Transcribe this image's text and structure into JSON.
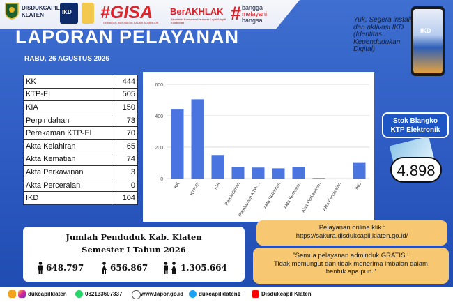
{
  "header": {
    "org_line1": "DISDUKCAPIL",
    "org_line2": "KLATEN",
    "ikd_badge": "IKD",
    "gisa": "#GISA",
    "gisa_sub": "GERAKAN INDONESIA SADAR ADMINDUK",
    "berakhlak": "BerAKHLAK",
    "berakhlak_sub": "Akuntabel Kompeten Harmonis Loyal Adaptif Kolaboratif",
    "bangga_hash": "#",
    "bangga_1": "bangga",
    "bangga_2": "melayani",
    "bangga_3": "bangsa"
  },
  "title": "LAPORAN PELAYANAN",
  "date": "RABU, 26 AGUSTUS 2026",
  "promo": "Yuk, Segera install dan aktivasi IKD (Identitas Kependudukan Digital)",
  "phone_label": "IKD",
  "services": [
    {
      "name": "KK",
      "value": "444"
    },
    {
      "name": "KTP-El",
      "value": "505"
    },
    {
      "name": "KIA",
      "value": "150"
    },
    {
      "name": "Perpindahan",
      "value": "73"
    },
    {
      "name": "Perekaman KTP-El",
      "value": "70"
    },
    {
      "name": "Akta Kelahiran",
      "value": "65"
    },
    {
      "name": "Akta Kematian",
      "value": "74"
    },
    {
      "name": "Akta Perkawinan",
      "value": "3"
    },
    {
      "name": "Akta Perceraian",
      "value": "0"
    },
    {
      "name": "IKD",
      "value": "104"
    }
  ],
  "chart_data": {
    "type": "bar",
    "categories": [
      "KK",
      "KTP-El",
      "KIA",
      "Perpindahan",
      "Perekaman KTP-...",
      "Akta Kelahiran",
      "Akta Kematian",
      "Akta Perkawinan",
      "Akta Perceraian",
      "IKD"
    ],
    "values": [
      444,
      505,
      150,
      73,
      70,
      65,
      74,
      3,
      0,
      104
    ],
    "yticks": [
      "0",
      "200",
      "400",
      "600"
    ],
    "ylim": [
      0,
      600
    ],
    "grid": true,
    "color": "#4a74e0"
  },
  "summary": {
    "title_line1": "Jumlah Penduduk Kab. Klaten",
    "title_line2": "Semester I Tahun 2026",
    "male": "648.797",
    "female": "656.867",
    "total": "1.305.664"
  },
  "stok": {
    "label_line1": "Stok Blangko",
    "label_line2": "KTP Elektronik",
    "value": "4.898"
  },
  "online": {
    "line1": "Pelayanan online klik :",
    "line2": "https://sakura.disdukcapil.klaten.go.id/"
  },
  "gratis": {
    "line1": "\"Semua pelayanan adminduk GRATIS !",
    "line2": "Tidak memungut dan tidak menerima imbalan dalam",
    "line3": "bentuk apa pun.\""
  },
  "footer": {
    "instagram": "dukcapilklaten",
    "whatsapp": "082133607337",
    "web": "www.lapor.go.id",
    "twitter": "dukcapilklaten1",
    "youtube": "Disdukcapil Klaten"
  },
  "colors": {
    "background": "#2f5dc4",
    "accent_red": "#d42129",
    "info_box": "#f7c871",
    "stok_box": "#1d56c4"
  }
}
